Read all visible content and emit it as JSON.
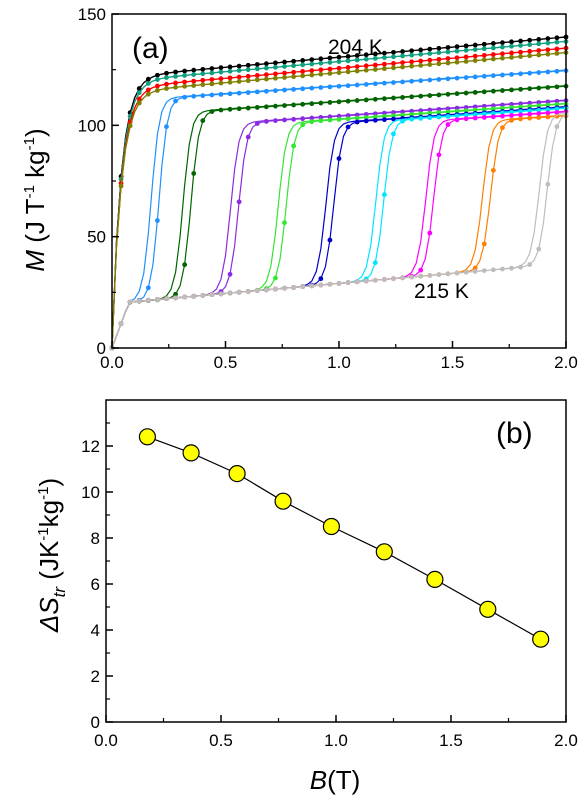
{
  "chart_data": [
    {
      "panel_label": "(a)",
      "type": "line",
      "ylabel": {
        "symbol": "M",
        "unit_open": " (J T",
        "exp1": "-1",
        "unit_mid": " kg",
        "exp2": "-1",
        "unit_close": ")"
      },
      "xlim": [
        0,
        2.0
      ],
      "ylim": [
        0,
        150
      ],
      "x_ticks": [
        "0.0",
        "0.5",
        "1.0",
        "1.5",
        "2.0"
      ],
      "y_ticks": [
        "0",
        "50",
        "100",
        "150"
      ],
      "annotations": [
        {
          "text": "204 K",
          "color": "#000000"
        },
        {
          "text": "215 K",
          "color": "#9e9e9e"
        }
      ],
      "series_colors": [
        "#000000",
        "#10a080",
        "#ff0000",
        "#808000",
        "#1e90ff",
        "#006400",
        "#8a2be2",
        "#32e632",
        "#0000cd",
        "#00e5ff",
        "#ff00ff",
        "#ff7f00",
        "#bdbdbd"
      ],
      "series": [
        {
          "color": "#000000",
          "Bc": 0.02,
          "Msat": 124,
          "slope": 4.5
        },
        {
          "color": "#10a080",
          "Bc": 0.03,
          "Msat": 122,
          "slope": 4.5
        },
        {
          "color": "#ff0000",
          "Bc": 0.05,
          "Msat": 119,
          "slope": 4.8
        },
        {
          "color": "#808000",
          "Bc": 0.07,
          "Msat": 117,
          "slope": 5.0
        },
        {
          "color": "#1e90ff",
          "Bc": 0.19,
          "Msat": 112,
          "slope": 6.0
        },
        {
          "color": "#006400",
          "Bc": 0.33,
          "Msat": 106,
          "slope": 8.0
        },
        {
          "color": "#8a2be2",
          "Bc": 0.54,
          "Msat": 101,
          "slope": 9.0
        },
        {
          "color": "#32e632",
          "Bc": 0.75,
          "Msat": 101,
          "slope": 9.0
        },
        {
          "color": "#0000cd",
          "Bc": 0.96,
          "Msat": 101,
          "slope": 9.0
        },
        {
          "color": "#00e5ff",
          "Bc": 1.18,
          "Msat": 102,
          "slope": 9.0
        },
        {
          "color": "#ff00ff",
          "Bc": 1.4,
          "Msat": 102,
          "slope": 9.0
        },
        {
          "color": "#ff7f00",
          "Bc": 1.65,
          "Msat": 102,
          "slope": 9.0
        },
        {
          "color": "#bdbdbd",
          "Bc": 1.9,
          "Msat": 105,
          "slope": 9.0
        }
      ]
    },
    {
      "panel_label": "(b)",
      "type": "line",
      "ylabel": {
        "prefix": "ΔS",
        "sub": "tr",
        "unit_open": " (JK",
        "exp1": "-1",
        "unit_mid": "kg",
        "exp2": "-1",
        "unit_close": ")"
      },
      "xlabel": {
        "symbol": "B",
        "unit": "(T)"
      },
      "xlim": [
        0,
        2.0
      ],
      "ylim": [
        0,
        14
      ],
      "x_ticks": [
        "0.0",
        "0.5",
        "1.0",
        "1.5",
        "2.0"
      ],
      "y_ticks": [
        "0",
        "2",
        "4",
        "6",
        "8",
        "10",
        "12"
      ],
      "marker_color": "#ffff00",
      "x": [
        0.18,
        0.37,
        0.57,
        0.77,
        0.98,
        1.21,
        1.43,
        1.66,
        1.89
      ],
      "y": [
        12.4,
        11.7,
        10.8,
        9.6,
        8.5,
        7.4,
        6.2,
        4.9,
        3.6
      ]
    }
  ]
}
